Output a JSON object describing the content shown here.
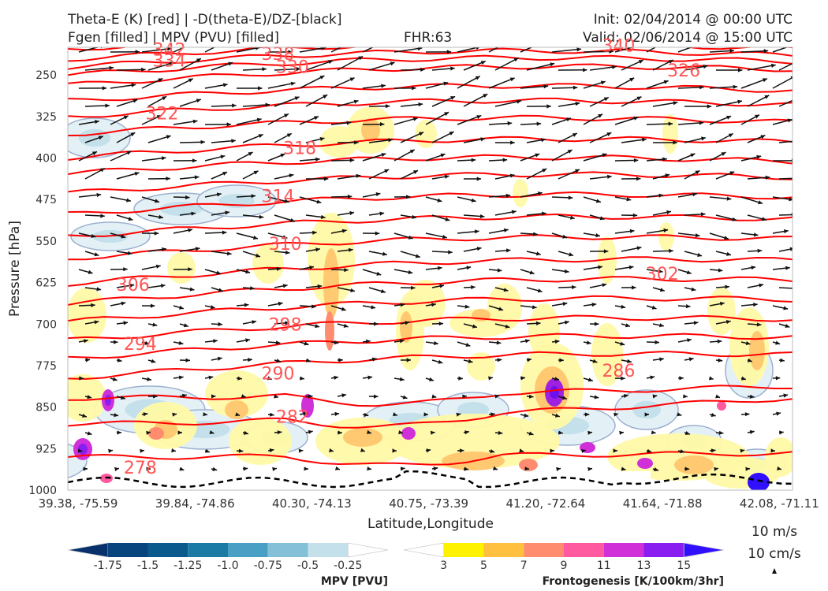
{
  "header": {
    "title_left_1": "Theta-E (K) [red] | -D(theta-E)/DZ-[black]",
    "title_left_2": "Fgen [filled] | MPV (PVU) [filled]",
    "fhr": "FHR:63",
    "init": "Init: 02/04/2014 @ 00:00 UTC",
    "valid": "Valid: 02/06/2014 @ 15:00 UTC"
  },
  "chart_data": {
    "type": "cross-section",
    "xlabel": "Latitude,Longitude",
    "ylabel": "Pressure [hPa]",
    "x_ticks": [
      "39.38, -75.59",
      "39.84, -74.86",
      "40.30, -74.13",
      "40.75, -73.39",
      "41.20, -72.64",
      "41.64, -71.88",
      "42.08, -71.11"
    ],
    "y_ticks": [
      250,
      325,
      400,
      475,
      550,
      625,
      700,
      775,
      850,
      925,
      1000
    ],
    "ylim": [
      1000,
      200
    ],
    "theta_e_series": {
      "name": "Theta-E (K)",
      "color": "#ff0000",
      "labels": [
        {
          "value": "342",
          "x_frac": 0.14,
          "p": 205
        },
        {
          "value": "338",
          "x_frac": 0.29,
          "p": 213
        },
        {
          "value": "334",
          "x_frac": 0.14,
          "p": 225
        },
        {
          "value": "330",
          "x_frac": 0.31,
          "p": 236
        },
        {
          "value": "326",
          "x_frac": 0.85,
          "p": 243
        },
        {
          "value": "322",
          "x_frac": 0.13,
          "p": 320
        },
        {
          "value": "318",
          "x_frac": 0.32,
          "p": 383
        },
        {
          "value": "314",
          "x_frac": 0.29,
          "p": 470
        },
        {
          "value": "310",
          "x_frac": 0.3,
          "p": 556
        },
        {
          "value": "306",
          "x_frac": 0.09,
          "p": 630
        },
        {
          "value": "302",
          "x_frac": 0.82,
          "p": 610
        },
        {
          "value": "298",
          "x_frac": 0.3,
          "p": 702
        },
        {
          "value": "294",
          "x_frac": 0.1,
          "p": 737
        },
        {
          "value": "290",
          "x_frac": 0.29,
          "p": 790
        },
        {
          "value": "286",
          "x_frac": 0.76,
          "p": 785
        },
        {
          "value": "282",
          "x_frac": 0.31,
          "p": 868
        },
        {
          "value": "278",
          "x_frac": 0.1,
          "p": 960
        },
        {
          "value": "340",
          "x_frac": 0.76,
          "p": 198
        }
      ]
    },
    "mpv_colorbar": {
      "label": "MPV [PVU]",
      "ticks": [
        "-1.75",
        "-1.5",
        "-1.25",
        "-1.0",
        "-0.75",
        "-0.5",
        "-0.25"
      ],
      "colors": [
        "#08306b",
        "#08457e",
        "#0a5a8d",
        "#1b7ba4",
        "#4aa0c4",
        "#84c0d8",
        "#c4e0ea",
        "#ffffff"
      ]
    },
    "fgen_colorbar": {
      "label": "Frontogenesis [K/100km/3hr]",
      "ticks": [
        "3",
        "5",
        "7",
        "9",
        "11",
        "13",
        "15"
      ],
      "colors": [
        "#ffffff",
        "#fff200",
        "#ffc040",
        "#ff8c6e",
        "#ff5aa0",
        "#d030d8",
        "#8a1ef0",
        "#3010ff"
      ]
    },
    "vector_keys": [
      "10 m/s",
      "10 cm/s"
    ]
  }
}
